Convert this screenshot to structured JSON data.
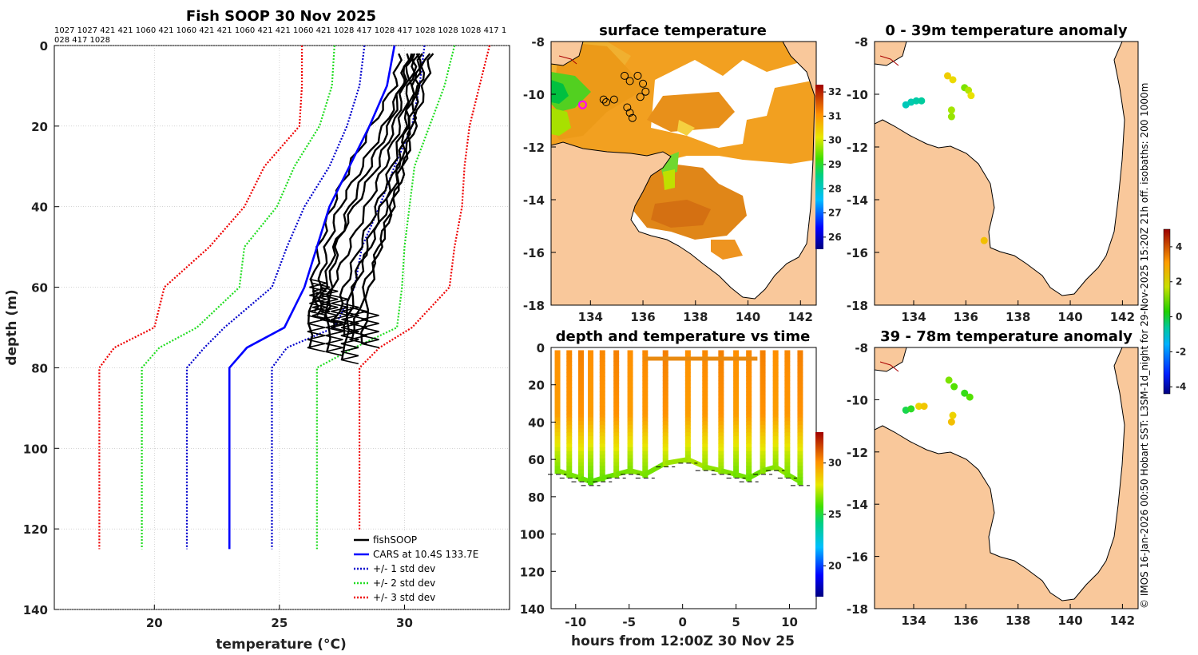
{
  "colors": {
    "land": "#f9c89b",
    "water_bg": "#ffffff",
    "fishsoop": "#000000",
    "cars": "#0000ff",
    "std1": "#0000cc",
    "std2": "#22dd22",
    "std3": "#ee0000",
    "marker": "#ff00ff"
  },
  "credit": "© IMOS 16-Jan-2026 00:50 Hobart SST: L3SM-1d_night for 29-Nov-2025 15:20Z 21h off. isobaths: 200  1000m",
  "chart_data": [
    {
      "id": "profile",
      "type": "line",
      "title": "Fish SOOP 30 Nov 2025",
      "subtitle_lines": [
        "1027 1027 421 421 1060 421 1060 421 421 1060 421 421 1060 421 1028 417 1028 417 1028 1028 1028 417 1",
        "028 417 1028"
      ],
      "xlabel": "temperature (°C)",
      "ylabel": "depth (m)",
      "xlim": [
        16.0,
        34.2
      ],
      "ylim": [
        140,
        0
      ],
      "xticks": [
        20,
        25,
        30
      ],
      "yticks": [
        0,
        20,
        40,
        60,
        80,
        100,
        120,
        140
      ],
      "grid": true,
      "legend_position": "bottom-right",
      "legend": [
        {
          "label": "fishSOOP",
          "color": "#000000",
          "style": "solid"
        },
        {
          "label": "CARS at 10.4S 133.7E",
          "color": "#0000ff",
          "style": "solid"
        },
        {
          "label": "+/- 1 std dev",
          "color": "#0000cc",
          "style": "dotted"
        },
        {
          "label": "+/- 2 std dev",
          "color": "#22dd22",
          "style": "dotted"
        },
        {
          "label": "+/- 3 std dev",
          "color": "#ee0000",
          "style": "dotted"
        }
      ],
      "cars_mean": {
        "depth": [
          0,
          10,
          20,
          30,
          40,
          50,
          60,
          70,
          75,
          80,
          125
        ],
        "temp": [
          29.6,
          29.3,
          28.6,
          27.8,
          27.0,
          26.5,
          26.0,
          25.2,
          23.7,
          23.0,
          23.0
        ]
      },
      "std_curves": [
        {
          "name": "-1",
          "depth": [
            0,
            10,
            20,
            30,
            40,
            50,
            60,
            70,
            75,
            80,
            125
          ],
          "temp": [
            28.4,
            28.2,
            27.7,
            27.0,
            26.0,
            25.3,
            24.7,
            22.8,
            22.0,
            21.3,
            21.3
          ],
          "color": "#0000cc"
        },
        {
          "name": "+1",
          "depth": [
            0,
            10,
            20,
            30,
            40,
            50,
            60,
            70,
            75,
            80,
            125
          ],
          "temp": [
            30.8,
            30.6,
            30.3,
            29.6,
            29.0,
            28.3,
            28.0,
            27.2,
            25.3,
            24.7,
            24.7
          ],
          "color": "#0000cc"
        },
        {
          "name": "-2",
          "depth": [
            0,
            10,
            20,
            30,
            40,
            50,
            60,
            70,
            75,
            80,
            125
          ],
          "temp": [
            27.2,
            27.1,
            26.6,
            25.6,
            24.9,
            23.6,
            23.4,
            21.7,
            20.2,
            19.5,
            19.5
          ],
          "color": "#22dd22"
        },
        {
          "name": "+2",
          "depth": [
            0,
            10,
            20,
            30,
            40,
            50,
            60,
            70,
            75,
            80,
            125
          ],
          "temp": [
            32.0,
            31.6,
            31.0,
            30.4,
            30.2,
            30.0,
            29.9,
            29.7,
            28.0,
            26.5,
            26.5
          ],
          "color": "#22dd22"
        },
        {
          "name": "-3",
          "depth": [
            0,
            10,
            20,
            30,
            40,
            50,
            60,
            70,
            75,
            80,
            125
          ],
          "temp": [
            25.9,
            25.9,
            25.8,
            24.4,
            23.6,
            22.2,
            20.4,
            20.0,
            18.4,
            17.8,
            17.8
          ],
          "color": "#ee0000"
        },
        {
          "name": "+3",
          "depth": [
            0,
            10,
            20,
            30,
            40,
            50,
            60,
            70,
            75,
            80,
            125
          ],
          "temp": [
            33.4,
            33.0,
            32.6,
            32.4,
            32.3,
            32.0,
            31.8,
            30.3,
            29.0,
            28.2,
            28.2
          ],
          "color": "#ee0000"
        }
      ],
      "fishsoop_casts": [
        {
          "depth": [
            2,
            10,
            20,
            30,
            40,
            50,
            60,
            66
          ],
          "temp": [
            30.1,
            29.9,
            29.2,
            28.3,
            27.4,
            26.9,
            26.6,
            26.4
          ]
        },
        {
          "depth": [
            2,
            10,
            20,
            30,
            40,
            50,
            60,
            67
          ],
          "temp": [
            30.3,
            30.0,
            29.6,
            28.9,
            28.0,
            27.2,
            26.8,
            26.5
          ]
        },
        {
          "depth": [
            2,
            10,
            20,
            30,
            40,
            50,
            60,
            68
          ],
          "temp": [
            30.5,
            30.2,
            29.8,
            29.2,
            28.5,
            27.8,
            27.1,
            26.8
          ]
        },
        {
          "depth": [
            2,
            10,
            20,
            30,
            40,
            50,
            60,
            70
          ],
          "temp": [
            30.7,
            30.4,
            30.0,
            29.5,
            28.9,
            28.2,
            27.6,
            27.2
          ]
        },
        {
          "depth": [
            2,
            10,
            20,
            30,
            40,
            50,
            60,
            72
          ],
          "temp": [
            30.4,
            30.3,
            30.1,
            29.8,
            29.3,
            28.6,
            28.0,
            27.6
          ]
        },
        {
          "depth": [
            2,
            10,
            20,
            30,
            40,
            50,
            60,
            73
          ],
          "temp": [
            30.6,
            30.5,
            30.3,
            30.0,
            29.5,
            29.0,
            28.4,
            27.9
          ]
        },
        {
          "depth": [
            2,
            10,
            20,
            30,
            40,
            50,
            60,
            75
          ],
          "temp": [
            29.8,
            29.6,
            28.7,
            27.8,
            27.1,
            26.6,
            26.3,
            26.2
          ]
        },
        {
          "depth": [
            2,
            10,
            20,
            30,
            40,
            50,
            60,
            76
          ],
          "temp": [
            30.2,
            29.9,
            29.4,
            28.6,
            27.8,
            27.3,
            27.0,
            26.9
          ]
        },
        {
          "depth": [
            2,
            10,
            20,
            30,
            40,
            50,
            60,
            78
          ],
          "temp": [
            30.9,
            30.6,
            30.2,
            29.7,
            29.1,
            28.5,
            27.9,
            27.5
          ]
        },
        {
          "depth": [
            2,
            10,
            20,
            30,
            40,
            50,
            60,
            74
          ],
          "temp": [
            31.1,
            30.8,
            30.4,
            29.9,
            29.5,
            29.0,
            28.6,
            28.3
          ]
        }
      ]
    },
    {
      "id": "sst_map",
      "type": "heatmap",
      "title": "surface temperature",
      "xlim": [
        132.5,
        142.6
      ],
      "ylim": [
        -18,
        -8
      ],
      "xticks": [
        134,
        136,
        138,
        140,
        142
      ],
      "yticks": [
        -8,
        -10,
        -12,
        -14,
        -16,
        -18
      ],
      "colorbar": {
        "ticks": [
          26,
          27,
          28,
          29,
          30,
          31,
          32
        ],
        "range": [
          25.5,
          32.3
        ]
      },
      "stations": [
        {
          "lon": 135.3,
          "lat": -9.3
        },
        {
          "lon": 135.5,
          "lat": -9.5
        },
        {
          "lon": 135.8,
          "lat": -9.3
        },
        {
          "lon": 136.0,
          "lat": -9.6
        },
        {
          "lon": 136.1,
          "lat": -9.9
        },
        {
          "lon": 135.9,
          "lat": -10.1
        },
        {
          "lon": 134.5,
          "lat": -10.2
        },
        {
          "lon": 134.6,
          "lat": -10.3
        },
        {
          "lon": 134.9,
          "lat": -10.2
        },
        {
          "lon": 135.4,
          "lat": -10.5
        },
        {
          "lon": 135.5,
          "lat": -10.7
        },
        {
          "lon": 135.6,
          "lat": -10.9
        }
      ],
      "marker": {
        "lon": 133.7,
        "lat": -10.4
      }
    },
    {
      "id": "anom_0_39",
      "type": "scatter",
      "title": "0 - 39m temperature anomaly",
      "xlim": [
        132.5,
        142.6
      ],
      "ylim": [
        -18,
        -8
      ],
      "xticks": [
        134,
        136,
        138,
        140,
        142
      ],
      "yticks": [
        -8,
        -10,
        -12,
        -14,
        -16,
        -18
      ],
      "points": [
        {
          "lon": 133.7,
          "lat": -10.4,
          "value": -0.8
        },
        {
          "lon": 133.9,
          "lat": -10.3,
          "value": -0.7
        },
        {
          "lon": 134.1,
          "lat": -10.25,
          "value": -0.6
        },
        {
          "lon": 134.3,
          "lat": -10.25,
          "value": -0.5
        },
        {
          "lon": 135.3,
          "lat": -9.3,
          "value": 2.4
        },
        {
          "lon": 135.5,
          "lat": -9.45,
          "value": 2.2
        },
        {
          "lon": 135.95,
          "lat": -9.75,
          "value": 1.2
        },
        {
          "lon": 136.1,
          "lat": -9.85,
          "value": 1.6
        },
        {
          "lon": 136.2,
          "lat": -10.05,
          "value": 2.1
        },
        {
          "lon": 135.45,
          "lat": -10.6,
          "value": 1.5
        },
        {
          "lon": 135.45,
          "lat": -10.85,
          "value": 1.4
        },
        {
          "lon": 136.7,
          "lat": -15.55,
          "value": 2.6
        }
      ]
    },
    {
      "id": "depth_time",
      "type": "scatter",
      "title": "depth and temperature vs time",
      "xlabel": "hours from 12:00Z 30 Nov 25",
      "xlim": [
        -12.3,
        12.5
      ],
      "ylim": [
        140,
        0
      ],
      "xticks": [
        -10,
        -5,
        0,
        5,
        10
      ],
      "yticks": [
        0,
        20,
        40,
        60,
        80,
        100,
        120,
        140
      ],
      "colorbar": {
        "ticks": [
          20,
          25,
          30
        ],
        "range": [
          17,
          33
        ]
      },
      "casts": [
        {
          "time": -11.7,
          "max_depth": 66
        },
        {
          "time": -10.6,
          "max_depth": 68
        },
        {
          "time": -9.5,
          "max_depth": 70
        },
        {
          "time": -8.6,
          "max_depth": 72
        },
        {
          "time": -7.5,
          "max_depth": 70
        },
        {
          "time": -6.2,
          "max_depth": 68
        },
        {
          "time": -4.9,
          "max_depth": 66
        },
        {
          "time": -3.5,
          "max_depth": 68
        },
        {
          "time": -1.6,
          "max_depth": 62
        },
        {
          "time": 0.5,
          "max_depth": 60
        },
        {
          "time": 2.1,
          "max_depth": 64
        },
        {
          "time": 3.6,
          "max_depth": 66
        },
        {
          "time": 5.0,
          "max_depth": 68
        },
        {
          "time": 6.2,
          "max_depth": 70
        },
        {
          "time": 7.5,
          "max_depth": 66
        },
        {
          "time": 8.7,
          "max_depth": 64
        },
        {
          "time": 9.8,
          "max_depth": 68
        },
        {
          "time": 11.0,
          "max_depth": 72
        }
      ]
    },
    {
      "id": "anom_39_78",
      "type": "scatter",
      "title": "39 - 78m temperature anomaly",
      "xlim": [
        132.5,
        142.6
      ],
      "ylim": [
        -18,
        -8
      ],
      "xticks": [
        134,
        136,
        138,
        140,
        142
      ],
      "yticks": [
        -8,
        -10,
        -12,
        -14,
        -16,
        -18
      ],
      "colorbar": {
        "ticks": [
          -4,
          -2,
          0,
          2,
          4
        ],
        "range": [
          -4.4,
          5.0
        ]
      },
      "points": [
        {
          "lon": 133.7,
          "lat": -10.4,
          "value": 0.2
        },
        {
          "lon": 133.9,
          "lat": -10.35,
          "value": 0.5
        },
        {
          "lon": 134.2,
          "lat": -10.25,
          "value": 2.3
        },
        {
          "lon": 134.4,
          "lat": -10.25,
          "value": 2.5
        },
        {
          "lon": 135.35,
          "lat": -9.25,
          "value": 1.2
        },
        {
          "lon": 135.55,
          "lat": -9.5,
          "value": 0.9
        },
        {
          "lon": 135.95,
          "lat": -9.75,
          "value": 0.6
        },
        {
          "lon": 136.15,
          "lat": -9.9,
          "value": 0.9
        },
        {
          "lon": 135.5,
          "lat": -10.6,
          "value": 2.3
        },
        {
          "lon": 135.45,
          "lat": -10.85,
          "value": 2.6
        }
      ]
    }
  ]
}
